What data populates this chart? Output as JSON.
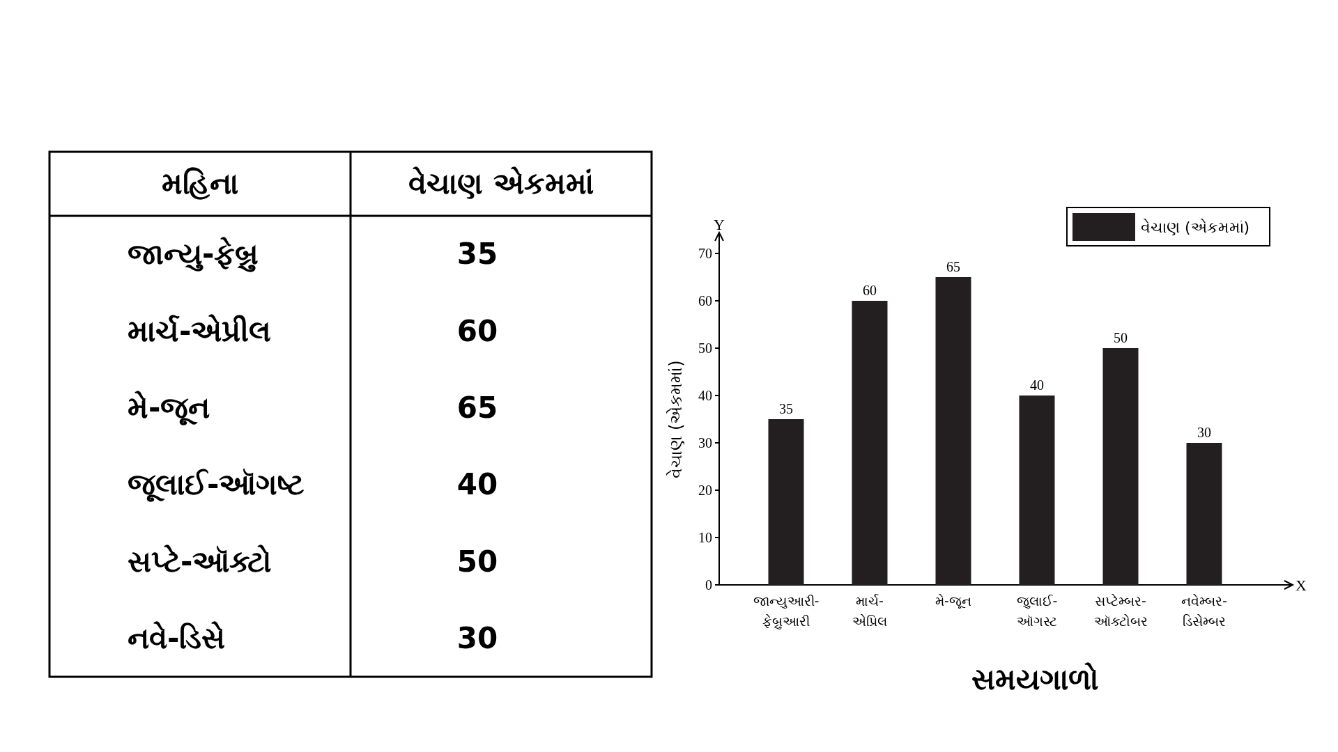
{
  "chart_data": [
    {
      "type": "other",
      "xlabel": "મહિના",
      "ylabel": "વેચાણ એકમમાં",
      "categories": [
        "જાન્યુ-ફેબ્રુ",
        "માર્ચ-એપ્રીલ",
        "મે-જૂન",
        "જૂલાઈ-ઑગષ્ટ",
        "સપ્ટે-ઑક્ટો",
        "નવે-ડિસે"
      ],
      "values": [
        35,
        60,
        65,
        40,
        50,
        30
      ],
      "data_labels": true
    },
    {
      "type": "bar",
      "categories": [
        "જાન્યુઆરી-ફેબ્રુઆરી",
        "માર્ચ-એપ્રિલ",
        "મે-જૂન",
        "જુલાઈ-ઑગસ્ટ",
        "સપ્ટેમ્બર-ઑક્ટોબર",
        "નવેમ્બર-ડિસેમ્બર"
      ],
      "series": [
        {
          "name": "વેચાણ (એકમમાં)",
          "color": "#231f20",
          "values": [
            35,
            60,
            65,
            40,
            50,
            30
          ]
        }
      ],
      "xlabel": "સમયગાળો",
      "ylabel": "વેચાણ (એકમમાં)",
      "annotations": [
        "X",
        "Y"
      ],
      "ylim": [
        0,
        70
      ],
      "yticks": [
        0,
        10,
        20,
        30,
        40,
        50,
        60,
        70
      ],
      "data_labels": true,
      "legend": "top right",
      "grid": false
    }
  ]
}
